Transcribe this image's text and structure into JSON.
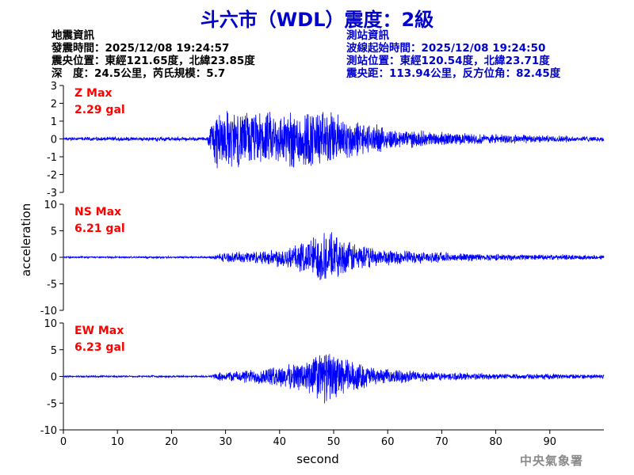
{
  "title": "斗六市（WDL）震度：2級",
  "event_info": {
    "heading": "地震資訊",
    "origin_time": "發震時間：2025/12/08 19:24:57",
    "epicenter": "震央位置：東經121.65度，北緯23.85度",
    "depth_magnitude": "深　度：24.5公里，芮氏規模：5.7"
  },
  "station_info": {
    "heading": "測站資訊",
    "wave_start": "波線起始時間：2025/12/08 19:24:50",
    "station_location": "測站位置：東經120.54度，北緯23.71度",
    "distance_azimuth": "震央距：113.94公里，反方位角：82.45度"
  },
  "agency": "中央氣象署",
  "colors": {
    "title": "#0000cc",
    "trace": "#0000ff",
    "max_label": "#ff0000",
    "axis": "#000000",
    "agency": "#8a8a8a"
  },
  "chart_data": {
    "type": "line",
    "xlabel": "second",
    "ylabel": "acceleration",
    "xlim": [
      0,
      100
    ],
    "xticks": [
      0,
      10,
      20,
      30,
      40,
      50,
      60,
      70,
      80,
      90
    ],
    "panels": [
      {
        "component": "Z",
        "max_label": "Z Max",
        "max_value": "2.29 gal",
        "ylim": [
          -3,
          3
        ],
        "yticks": [
          3,
          2,
          1,
          0,
          -1,
          -2,
          -3
        ],
        "noise_level": 0.06,
        "waveform": [
          {
            "t": 0,
            "amp": 0.08
          },
          {
            "t": 26.5,
            "amp": 0.08
          },
          {
            "t": 28,
            "amp": 1.8
          },
          {
            "t": 33,
            "amp": 1.7
          },
          {
            "t": 40,
            "amp": 1.6
          },
          {
            "t": 44,
            "amp": 1.9
          },
          {
            "t": 50,
            "amp": 1.6
          },
          {
            "t": 55,
            "amp": 1.0
          },
          {
            "t": 62,
            "amp": 0.55
          },
          {
            "t": 75,
            "amp": 0.3
          },
          {
            "t": 90,
            "amp": 0.18
          },
          {
            "t": 100,
            "amp": 0.12
          }
        ]
      },
      {
        "component": "NS",
        "max_label": "NS Max",
        "max_value": "6.21 gal",
        "ylim": [
          -10,
          10
        ],
        "yticks": [
          10,
          5,
          0,
          -5,
          -10
        ],
        "noise_level": 0.12,
        "waveform": [
          {
            "t": 0,
            "amp": 0.1
          },
          {
            "t": 27,
            "amp": 0.1
          },
          {
            "t": 29,
            "amp": 0.8
          },
          {
            "t": 38,
            "amp": 1.5
          },
          {
            "t": 44,
            "amp": 3.0
          },
          {
            "t": 48,
            "amp": 5.5
          },
          {
            "t": 52,
            "amp": 3.5
          },
          {
            "t": 58,
            "amp": 1.8
          },
          {
            "t": 68,
            "amp": 1.0
          },
          {
            "t": 80,
            "amp": 0.6
          },
          {
            "t": 100,
            "amp": 0.4
          }
        ]
      },
      {
        "component": "EW",
        "max_label": "EW Max",
        "max_value": "6.23 gal",
        "ylim": [
          -10,
          10
        ],
        "yticks": [
          10,
          5,
          0,
          -5,
          -10
        ],
        "noise_level": 0.12,
        "waveform": [
          {
            "t": 0,
            "amp": 0.1
          },
          {
            "t": 27,
            "amp": 0.1
          },
          {
            "t": 29,
            "amp": 0.8
          },
          {
            "t": 38,
            "amp": 1.8
          },
          {
            "t": 44,
            "amp": 3.0
          },
          {
            "t": 48,
            "amp": 5.5
          },
          {
            "t": 52,
            "amp": 3.8
          },
          {
            "t": 58,
            "amp": 1.6
          },
          {
            "t": 68,
            "amp": 0.9
          },
          {
            "t": 80,
            "amp": 0.55
          },
          {
            "t": 100,
            "amp": 0.4
          }
        ]
      }
    ]
  }
}
